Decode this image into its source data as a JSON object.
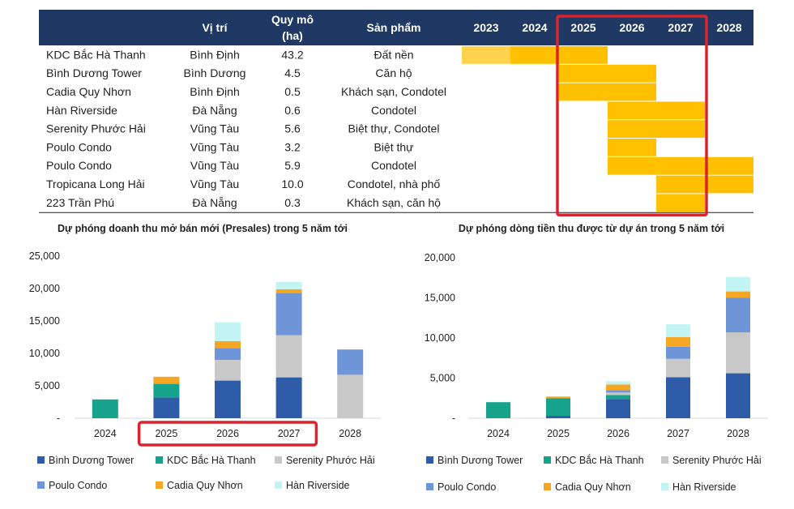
{
  "table": {
    "headers": {
      "name": "",
      "location": "Vị trí",
      "scale_line1": "Quy mô",
      "scale_line2": "(ha)",
      "product": "Sản phẩm"
    },
    "years": [
      "2023",
      "2024",
      "2025",
      "2026",
      "2027",
      "2028"
    ],
    "highlighted_years": [
      "2025",
      "2026",
      "2027"
    ],
    "rows": [
      {
        "name": "KDC Bắc Hà Thanh",
        "location": "Bình Định",
        "scale": "43.2",
        "product": "Đất nền",
        "active_years": [
          "2023",
          "2024",
          "2025"
        ],
        "faded_years": [
          "2023"
        ]
      },
      {
        "name": "Bình Dương Tower",
        "location": "Bình Dương",
        "scale": "4.5",
        "product": "Căn hộ",
        "active_years": [
          "2025",
          "2026"
        ],
        "faded_years": []
      },
      {
        "name": "Cadia Quy Nhơn",
        "location": "Bình Định",
        "scale": "0.5",
        "product": "Khách sạn, Condotel",
        "active_years": [
          "2025",
          "2026"
        ],
        "faded_years": []
      },
      {
        "name": "Hàn Riverside",
        "location": "Đà Nẵng",
        "scale": "0.6",
        "product": "Condotel",
        "active_years": [
          "2026",
          "2027"
        ],
        "faded_years": []
      },
      {
        "name": "Serenity Phước Hải",
        "location": "Vũng Tàu",
        "scale": "5.6",
        "product": "Biệt thự, Condotel",
        "active_years": [
          "2026",
          "2027"
        ],
        "faded_years": []
      },
      {
        "name": "Poulo Condo",
        "location": "Vũng Tàu",
        "scale": "3.2",
        "product": "Biệt thự",
        "active_years": [
          "2026"
        ],
        "faded_years": []
      },
      {
        "name": "Poulo Condo",
        "location": "Vũng Tàu",
        "scale": "5.9",
        "product": "Condotel",
        "active_years": [
          "2026",
          "2027",
          "2028"
        ],
        "faded_years": []
      },
      {
        "name": "Tropicana Long Hải",
        "location": "Vũng Tàu",
        "scale": "10.0",
        "product": "Condotel, nhà phố",
        "active_years": [
          "2027",
          "2028"
        ],
        "faded_years": []
      },
      {
        "name": "223 Trần Phú",
        "location": "Đà Nẵng",
        "scale": "0.3",
        "product": "Khách sạn, căn hộ",
        "active_years": [
          "2027"
        ],
        "faded_years": []
      }
    ]
  },
  "colors": {
    "header_bg": "#1f3864",
    "timeline_fill": "#ffc000",
    "timeline_faded": "#ffd24d",
    "highlight_box": "#d9232d",
    "Bình Dương Tower": "#2e5ca8",
    "KDC Bắc Hà Thanh": "#15a38b",
    "Serenity Phước Hải": "#c8c8c8",
    "Poulo Condo": "#6e95d8",
    "Cadia Quy Nhơn": "#f5a623",
    "Hàn Riverside": "#c2f4f4"
  },
  "chart_data": [
    {
      "type": "bar",
      "stacked": true,
      "title": "Dự phóng doanh thu mở bán mới (Presales) trong 5 năm tới",
      "categories": [
        "2024",
        "2025",
        "2026",
        "2027",
        "2028"
      ],
      "highlighted_categories": [
        "2025",
        "2026",
        "2027"
      ],
      "ylim": [
        0,
        25000
      ],
      "yticks": [
        0,
        5000,
        10000,
        15000,
        20000,
        25000
      ],
      "ytick_labels": [
        "-",
        "5,000",
        "10,000",
        "15,000",
        "20,000",
        "25,000"
      ],
      "xlabel": "",
      "ylabel": "",
      "legend_position": "bottom",
      "series": [
        {
          "name": "Bình Dương Tower",
          "values": [
            0,
            3200,
            5800,
            6300,
            0
          ]
        },
        {
          "name": "KDC Bắc Hà Thanh",
          "values": [
            2900,
            2100,
            0,
            0,
            0
          ]
        },
        {
          "name": "Serenity Phước Hải",
          "values": [
            0,
            0,
            3200,
            6500,
            6700
          ]
        },
        {
          "name": "Poulo Condo",
          "values": [
            0,
            0,
            1800,
            6500,
            3900
          ]
        },
        {
          "name": "Cadia Quy Nhơn",
          "values": [
            0,
            1100,
            1100,
            600,
            0
          ]
        },
        {
          "name": "Hàn Riverside",
          "values": [
            0,
            0,
            2900,
            1100,
            0
          ]
        }
      ]
    },
    {
      "type": "bar",
      "stacked": true,
      "title": "Dự phóng dòng tiền thu được từ dự án trong 5 năm tới",
      "categories": [
        "2024",
        "2025",
        "2026",
        "2027",
        "2028"
      ],
      "ylim": [
        0,
        20000
      ],
      "yticks": [
        0,
        5000,
        10000,
        15000,
        20000
      ],
      "ytick_labels": [
        "-",
        "5,000",
        "10,000",
        "15,000",
        "20,000"
      ],
      "xlabel": "",
      "ylabel": "",
      "legend_position": "bottom",
      "series": [
        {
          "name": "Bình Dương Tower",
          "values": [
            0,
            300,
            2400,
            5100,
            5600
          ]
        },
        {
          "name": "KDC Bắc Hà Thanh",
          "values": [
            2000,
            2200,
            500,
            0,
            0
          ]
        },
        {
          "name": "Serenity Phước Hải",
          "values": [
            0,
            0,
            300,
            2300,
            5100
          ]
        },
        {
          "name": "Poulo Condo",
          "values": [
            0,
            0,
            300,
            1500,
            4300
          ]
        },
        {
          "name": "Cadia Quy Nhơn",
          "values": [
            0,
            200,
            700,
            1200,
            800
          ]
        },
        {
          "name": "Hàn Riverside",
          "values": [
            0,
            0,
            400,
            1600,
            1800
          ]
        }
      ]
    }
  ]
}
